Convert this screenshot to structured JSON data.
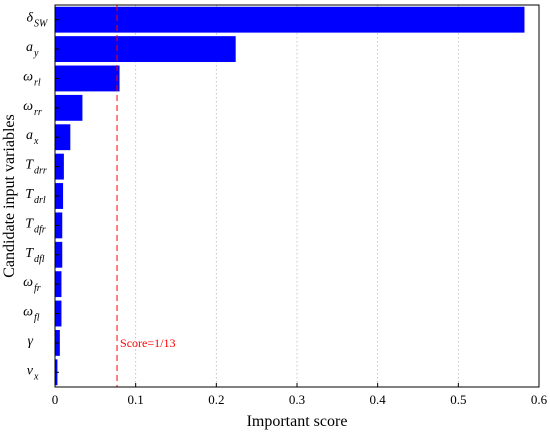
{
  "chart_data": {
    "type": "bar",
    "orientation": "horizontal",
    "title": "",
    "xlabel": "Important score",
    "ylabel": "Candidate input variables",
    "xlim": [
      0,
      0.6
    ],
    "xticks": [
      0,
      0.1,
      0.2,
      0.3,
      0.4,
      0.5,
      0.6
    ],
    "xtick_labels": [
      "0",
      "0.1",
      "0.2",
      "0.3",
      "0.4",
      "0.5",
      "0.6"
    ],
    "grid": "vertical dotted",
    "categories": [
      {
        "base": "δ",
        "sub": "SW"
      },
      {
        "base": "a",
        "sub": "y"
      },
      {
        "base": "ω",
        "sub": "rl"
      },
      {
        "base": "ω",
        "sub": "rr"
      },
      {
        "base": "a",
        "sub": "x"
      },
      {
        "base": "T",
        "sub": "drr"
      },
      {
        "base": "T",
        "sub": "drl"
      },
      {
        "base": "T",
        "sub": "dfr"
      },
      {
        "base": "T",
        "sub": "dfl"
      },
      {
        "base": "ω",
        "sub": "fr"
      },
      {
        "base": "ω",
        "sub": "fl"
      },
      {
        "base": "γ",
        "sub": ""
      },
      {
        "base": "v",
        "sub": "x"
      }
    ],
    "values": [
      0.582,
      0.224,
      0.08,
      0.034,
      0.019,
      0.011,
      0.01,
      0.009,
      0.009,
      0.008,
      0.008,
      0.006,
      0.003
    ],
    "bar_color": "#0000ff",
    "reference_line": {
      "value": 0.0769,
      "label": "Score=1/13",
      "color": "#ff0000",
      "style": "dashed"
    }
  }
}
